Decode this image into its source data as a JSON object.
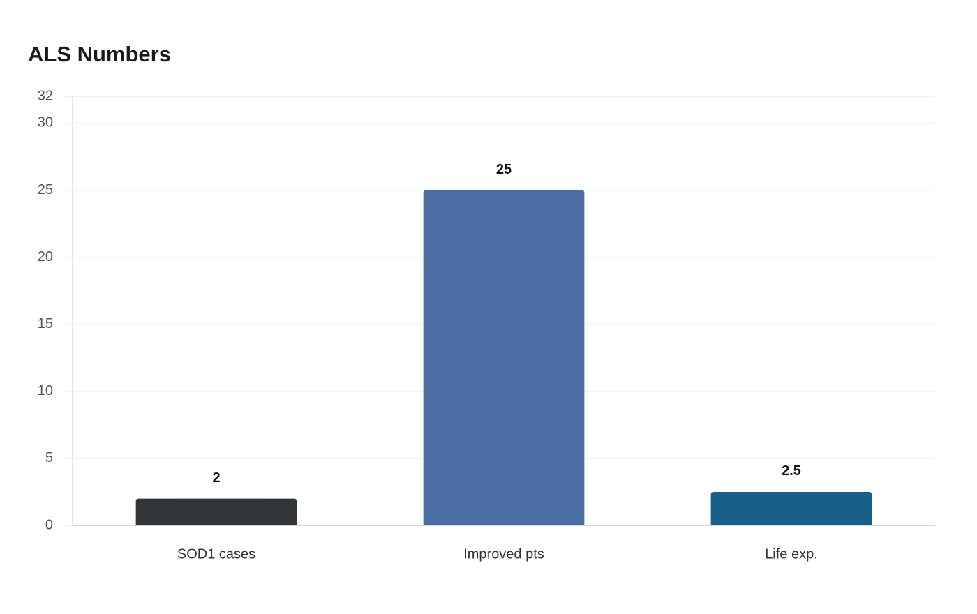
{
  "chart_data": {
    "type": "bar",
    "title": "ALS Numbers",
    "categories": [
      "SOD1 cases",
      "Improved pts",
      "Life exp."
    ],
    "values": [
      2,
      25,
      2.5
    ],
    "colors": [
      "#2f3538",
      "#4a6ea3",
      "#176188"
    ],
    "ylim": [
      0,
      32
    ],
    "yticks": [
      0,
      5,
      10,
      15,
      20,
      25,
      30,
      32
    ],
    "grid": true
  }
}
